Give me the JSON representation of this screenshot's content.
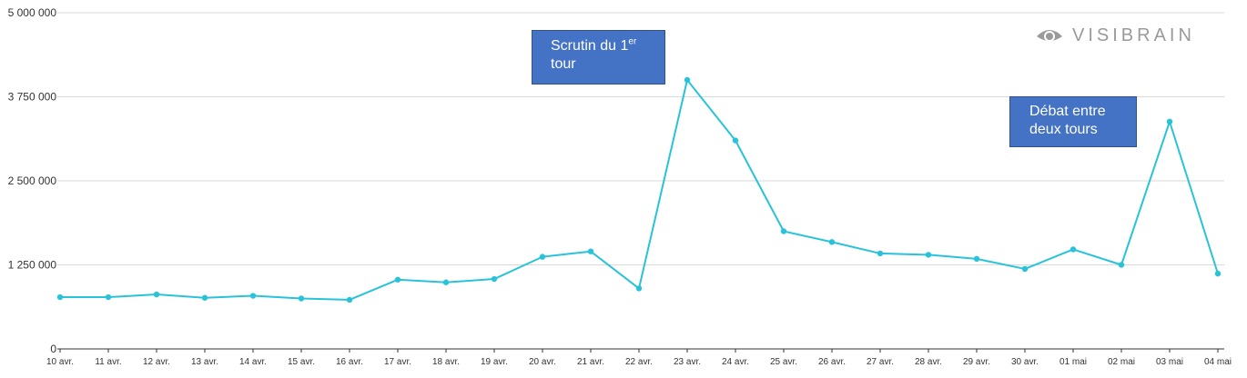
{
  "chart_data": {
    "type": "line",
    "x": [
      "10 avr.",
      "11 avr.",
      "12 avr.",
      "13 avr.",
      "14 avr.",
      "15 avr.",
      "16 avr.",
      "17 avr.",
      "18 avr.",
      "19 avr.",
      "20 avr.",
      "21 avr.",
      "22 avr.",
      "23 avr.",
      "24 avr.",
      "25 avr.",
      "26 avr.",
      "27 avr.",
      "28 avr.",
      "29 avr.",
      "30 avr.",
      "01 mai",
      "02 mai",
      "03 mai",
      "04 mai"
    ],
    "series": [
      {
        "values": [
          770000,
          770000,
          810000,
          760000,
          790000,
          750000,
          730000,
          1030000,
          990000,
          1040000,
          1370000,
          1450000,
          900000,
          4000000,
          3100000,
          1750000,
          1590000,
          1420000,
          1400000,
          1340000,
          1190000,
          1480000,
          1250000,
          3380000,
          1120000
        ]
      }
    ],
    "title": "",
    "xlabel": "",
    "ylabel": "",
    "ylim": [
      0,
      5000000
    ],
    "yticks": [
      0,
      1250000,
      2500000,
      3750000,
      5000000
    ],
    "ytick_labels": [
      "0",
      "1 250 000",
      "2 500 000",
      "3 750 000",
      "5 000 000"
    ],
    "grid": true,
    "line_color": "#29c3d9",
    "annotations": [
      {
        "text": "Scrutin du 1",
        "sup": "er",
        "text2": "tour",
        "x": "23 avr."
      },
      {
        "text": "Débat entre deux tours",
        "x": "03 mai"
      }
    ]
  },
  "logo": {
    "text": "VISIBRAIN",
    "color": "#9a9a9a"
  }
}
